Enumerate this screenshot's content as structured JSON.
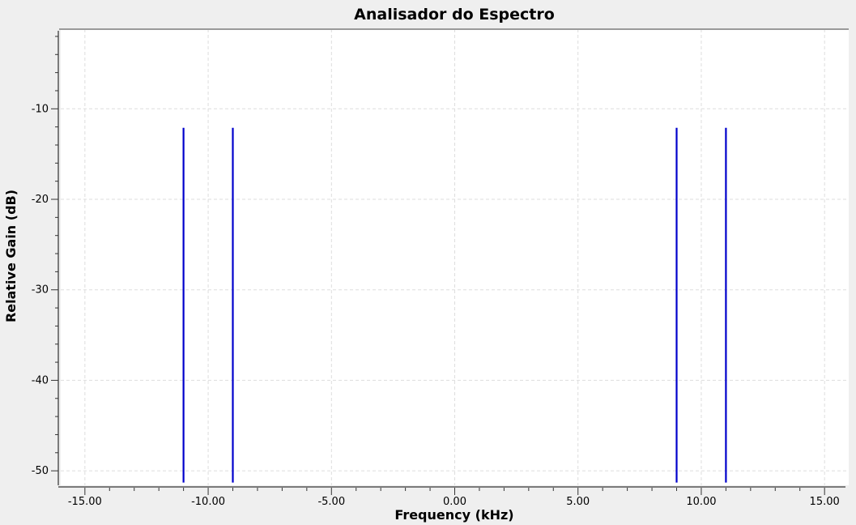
{
  "chart_data": {
    "type": "line",
    "title": "Analisador do Espectro",
    "xlabel": "Frequency (kHz)",
    "ylabel": "Relative Gain (dB)",
    "xlim": [
      -15.98,
      15.98
    ],
    "ylim": [
      -51.6,
      -1.2
    ],
    "grid": true,
    "x_ticks": [
      -15,
      -10,
      -5,
      0,
      5,
      10,
      15
    ],
    "x_tick_labels": [
      "-15.00",
      "-10.00",
      "-5.00",
      "0.00",
      "5.00",
      "10.00",
      "15.00"
    ],
    "y_ticks": [
      -10,
      -20,
      -30,
      -40,
      -50
    ],
    "y_tick_labels": [
      "-10",
      "-20",
      "-30",
      "-40",
      "-50"
    ],
    "series": [
      {
        "color": "#0000cc",
        "peaks": [
          {
            "x": -11.0,
            "y": -12.1
          },
          {
            "x": -9.0,
            "y": -12.1
          },
          {
            "x": 9.0,
            "y": -12.1
          },
          {
            "x": 11.0,
            "y": -12.1
          }
        ],
        "floor": -51.3
      }
    ]
  }
}
